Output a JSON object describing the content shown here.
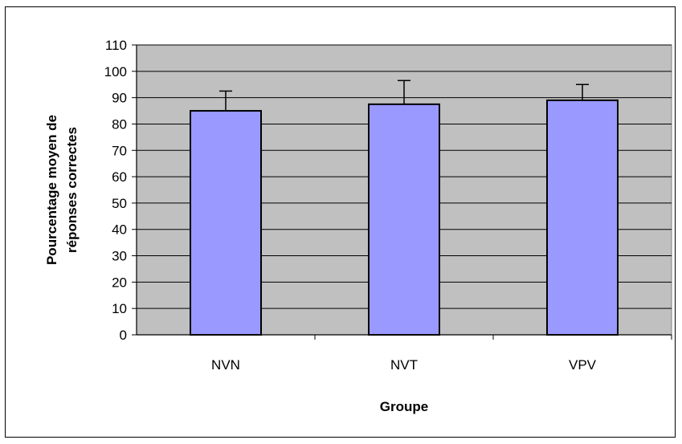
{
  "chart_data": {
    "type": "bar",
    "categories": [
      "NVN",
      "NVT",
      "VPV"
    ],
    "series": [
      {
        "values": [
          85,
          87.5,
          89
        ],
        "error_plus": [
          7.5,
          9,
          6
        ]
      }
    ],
    "xlabel": "Groupe",
    "ylabel_lines": [
      "Pourcentage moyen de",
      "réponses correctes"
    ],
    "ylim": [
      0,
      110
    ],
    "yticks": [
      0,
      10,
      20,
      30,
      40,
      50,
      60,
      70,
      80,
      90,
      100,
      110
    ],
    "grid": true,
    "colors": {
      "bar_fill": "#9999ff",
      "plot_background": "#c0c0c0"
    }
  }
}
